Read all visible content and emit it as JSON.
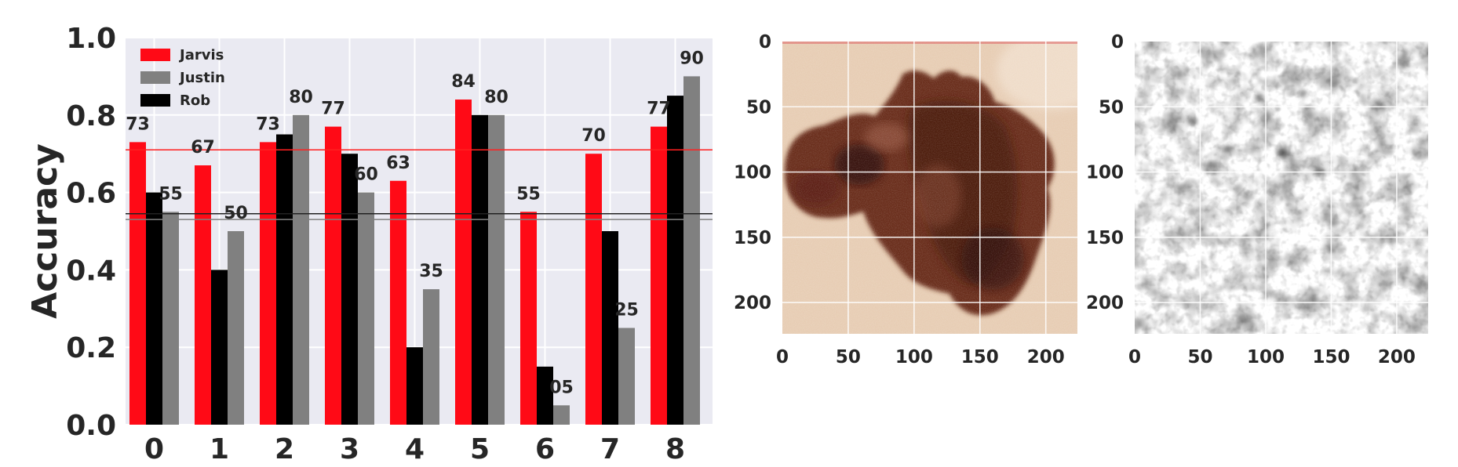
{
  "chart_data": [
    {
      "type": "bar",
      "ylabel": "Accuracy",
      "ylim": [
        0,
        1.0
      ],
      "yticks": [
        "0.0",
        "0.2",
        "0.4",
        "0.6",
        "0.8",
        "1.0"
      ],
      "categories": [
        "0",
        "1",
        "2",
        "3",
        "4",
        "5",
        "6",
        "7",
        "8"
      ],
      "grid": true,
      "legend_position": "top-left",
      "series": [
        {
          "name": "Jarvis",
          "color": "#ff0a16",
          "values": [
            0.73,
            0.67,
            0.73,
            0.77,
            0.63,
            0.84,
            0.55,
            0.7,
            0.77
          ]
        },
        {
          "name": "Rob",
          "color": "#000000",
          "values": [
            0.6,
            0.4,
            0.75,
            0.7,
            0.2,
            0.8,
            0.15,
            0.5,
            0.85
          ]
        },
        {
          "name": "Justin",
          "color": "#808080",
          "values": [
            0.55,
            0.5,
            0.8,
            0.6,
            0.35,
            0.8,
            0.05,
            0.25,
            0.9
          ]
        }
      ],
      "legend_order": [
        "Jarvis",
        "Justin",
        "Rob"
      ],
      "annotations": {
        "Jarvis": [
          "73",
          "67",
          "73",
          "77",
          "63",
          "84",
          "55",
          "70",
          "77"
        ],
        "Justin": [
          "55",
          "50",
          "80",
          "60",
          "35",
          "80",
          "05",
          "25",
          "90"
        ]
      },
      "reference_lines": [
        {
          "series": "Jarvis",
          "value": 0.71,
          "color": "#ff2020"
        },
        {
          "series": "Rob",
          "value": 0.545,
          "color": "#222222"
        },
        {
          "series": "Justin",
          "value": 0.53,
          "color": "#808080"
        }
      ]
    },
    {
      "type": "image",
      "content": "skin lesion photograph",
      "xticks": [
        "0",
        "50",
        "100",
        "150",
        "200"
      ],
      "yticks": [
        "0",
        "50",
        "100",
        "150",
        "200"
      ],
      "xlim": [
        0,
        224
      ],
      "ylim": [
        224,
        0
      ]
    },
    {
      "type": "image",
      "content": "grayscale saliency map",
      "xticks": [
        "0",
        "50",
        "100",
        "150",
        "200"
      ],
      "yticks": [
        "0",
        "50",
        "100",
        "150",
        "200"
      ],
      "xlim": [
        0,
        224
      ],
      "ylim": [
        224,
        0
      ]
    }
  ]
}
